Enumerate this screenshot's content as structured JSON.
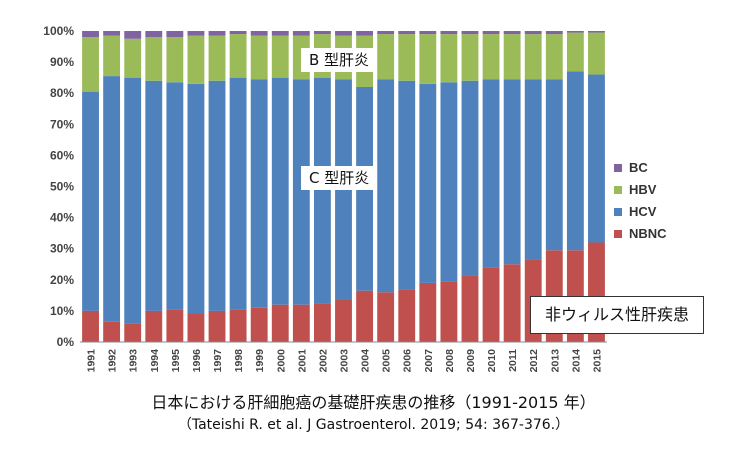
{
  "chart_data": {
    "type": "bar",
    "stacked": true,
    "percent": true,
    "categories": [
      "1991",
      "1992",
      "1993",
      "1994",
      "1995",
      "1996",
      "1997",
      "1998",
      "1999",
      "2000",
      "2001",
      "2002",
      "2003",
      "2004",
      "2005",
      "2006",
      "2007",
      "2008",
      "2009",
      "2010",
      "2011",
      "2012",
      "2013",
      "2014",
      "2015"
    ],
    "yticks": [
      "0%",
      "10%",
      "20%",
      "30%",
      "40%",
      "50%",
      "60%",
      "70%",
      "80%",
      "90%",
      "100%"
    ],
    "ylim": [
      0,
      100
    ],
    "grid": false,
    "legend_position": "right",
    "series": [
      {
        "name": "NBNC",
        "color": "#c0504d",
        "values": [
          10,
          6.5,
          6,
          10,
          10.5,
          9,
          10,
          10.5,
          11,
          12,
          12,
          12.5,
          13.5,
          16.5,
          16,
          17,
          19,
          19.5,
          21.5,
          24,
          25,
          26.5,
          29.5,
          29.5,
          32
        ]
      },
      {
        "name": "HCV",
        "color": "#4f81bd",
        "values": [
          70.5,
          79,
          79,
          74,
          73,
          74,
          74,
          74.5,
          73.5,
          73,
          72.5,
          72.5,
          71,
          65.5,
          68.5,
          67,
          64,
          64,
          62.5,
          60.5,
          59.5,
          58,
          55,
          57.5,
          54
        ]
      },
      {
        "name": "HBV",
        "color": "#9bbb59",
        "values": [
          17.5,
          13,
          12.5,
          14,
          14.5,
          15.5,
          14.5,
          14,
          14,
          13.5,
          14,
          14,
          14,
          16.5,
          14.5,
          15,
          16,
          15.5,
          15,
          14.5,
          14.5,
          14.5,
          14.5,
          12.5,
          13.5
        ]
      },
      {
        "name": "BC",
        "color": "#8064a2",
        "values": [
          2,
          1.5,
          2.5,
          2,
          2,
          1.5,
          1.5,
          1,
          1.5,
          1.5,
          1.5,
          1,
          1.5,
          1.5,
          1,
          1,
          1,
          1,
          1,
          1,
          1,
          1,
          1,
          0.5,
          0.5
        ]
      }
    ],
    "legend_order": [
      "BC",
      "HBV",
      "HCV",
      "NBNC"
    ],
    "annotations": [
      "B 型肝炎",
      "C 型肝炎",
      "非ウィルス性肝疾患"
    ]
  },
  "caption": "日本における肝細胞癌の基礎肝疾患の推移（1991-2015 年）",
  "citation": "（Tateishi R. et al. J Gastroenterol. 2019; 54: 367-376.）"
}
